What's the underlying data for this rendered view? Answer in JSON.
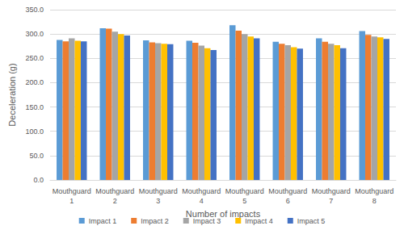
{
  "chart_data": {
    "type": "bar",
    "x_label": "Number of impacts",
    "y_label": "Deceleration (g)",
    "categories": [
      "Mouthguard 1",
      "Mouthguard 2",
      "Mouthguard 3",
      "Mouthguard 4",
      "Mouthguard 5",
      "Mouthguard 6",
      "Mouthguard 7",
      "Mouthguard 8"
    ],
    "series": [
      {
        "name": "Impact 1",
        "color": "#5B9BD5",
        "values": [
          288,
          312,
          287,
          286,
          318,
          284,
          291,
          306
        ]
      },
      {
        "name": "Impact 2",
        "color": "#ED7D31",
        "values": [
          285,
          311,
          283,
          282,
          307,
          280,
          284,
          298
        ]
      },
      {
        "name": "Impact 3",
        "color": "#A5A5A5",
        "values": [
          291,
          305,
          281,
          276,
          300,
          277,
          280,
          295
        ]
      },
      {
        "name": "Impact 4",
        "color": "#FFC000",
        "values": [
          286,
          300,
          280,
          271,
          295,
          273,
          277,
          293
        ]
      },
      {
        "name": "Impact 5",
        "color": "#4472C4",
        "values": [
          285,
          297,
          279,
          267,
          291,
          270,
          271,
          290
        ]
      }
    ],
    "ylim": [
      0,
      350
    ],
    "yticks": [
      {
        "value": 0,
        "label": "0.0"
      },
      {
        "value": 50,
        "label": "50.0"
      },
      {
        "value": 100,
        "label": "100.0"
      },
      {
        "value": 150,
        "label": "150.0"
      },
      {
        "value": 200,
        "label": "200.0"
      },
      {
        "value": 250,
        "label": "250.0"
      },
      {
        "value": 300,
        "label": "300.0"
      },
      {
        "value": 350,
        "label": "350.0"
      }
    ],
    "grid": true,
    "legend": "bottom"
  }
}
